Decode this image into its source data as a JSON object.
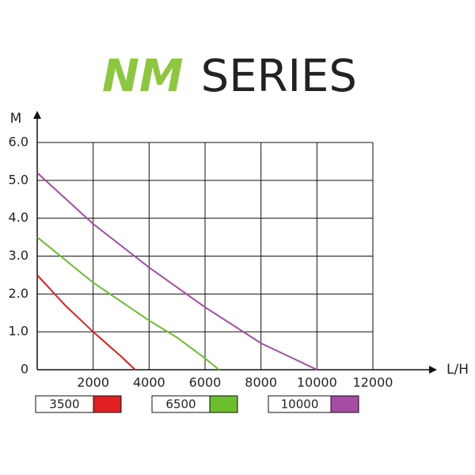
{
  "chart_data": {
    "type": "line",
    "title": [
      "NM",
      "SERIES"
    ],
    "title_colors": [
      "#8dc63f",
      "#222222"
    ],
    "y_label": "M",
    "x_label": "L/H",
    "xlim": [
      0,
      12000
    ],
    "ylim": [
      0,
      6
    ],
    "xticks": [
      2000,
      4000,
      6000,
      8000,
      10000,
      12000
    ],
    "yticks": [
      0,
      {
        "value": 1,
        "label": "1.0"
      },
      {
        "value": 2,
        "label": "2.0"
      },
      {
        "value": 3,
        "label": "3.0"
      },
      {
        "value": 4,
        "label": "4.0"
      },
      {
        "value": 5,
        "label": "5.0"
      },
      {
        "value": 6,
        "label": "6.0"
      }
    ],
    "grid": true,
    "series": [
      {
        "name": "3500",
        "color": "#e02020",
        "x": [
          0,
          1000,
          2000,
          3000,
          3500
        ],
        "values": [
          2.5,
          1.7,
          1.0,
          0.35,
          0
        ]
      },
      {
        "name": "6500",
        "color": "#6cbf2c",
        "x": [
          0,
          2000,
          4000,
          5000,
          6000,
          6500
        ],
        "values": [
          3.5,
          2.3,
          1.3,
          0.85,
          0.3,
          0
        ]
      },
      {
        "name": "10000",
        "color": "#a64ca6",
        "x": [
          0,
          2000,
          4000,
          6000,
          8000,
          10000
        ],
        "values": [
          5.2,
          3.85,
          2.7,
          1.65,
          0.7,
          0
        ]
      }
    ]
  }
}
